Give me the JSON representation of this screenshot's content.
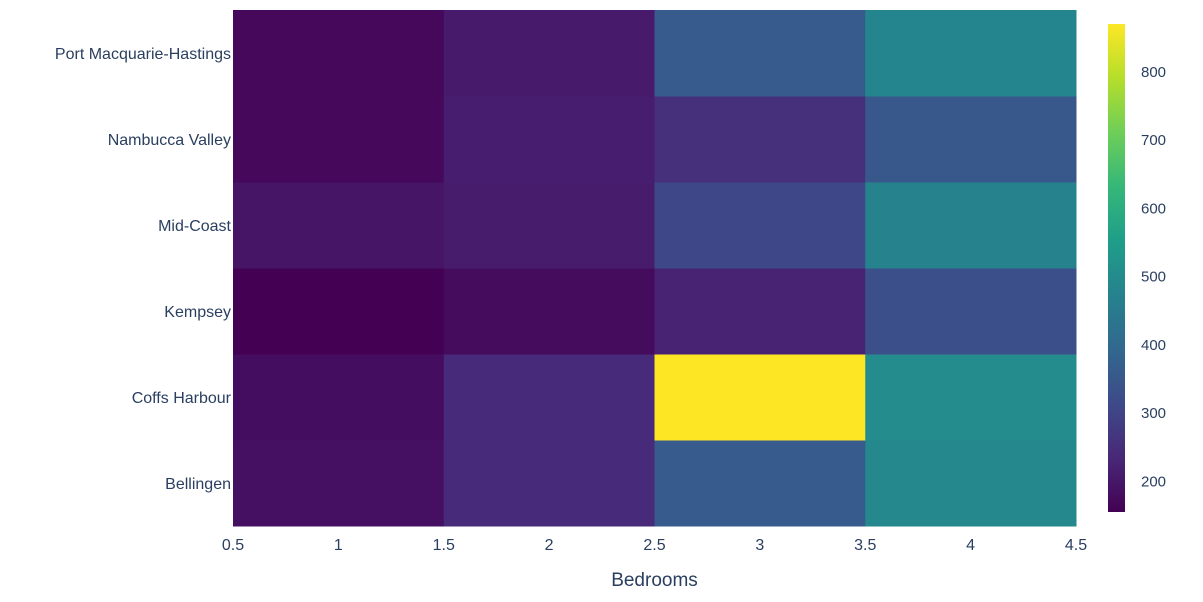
{
  "chart_data": {
    "type": "heatmap",
    "title": "",
    "xlabel": "Bedrooms",
    "ylabel": "",
    "x": [
      1,
      2,
      3,
      4
    ],
    "xlim": [
      0.5,
      4.5
    ],
    "x_ticks": [
      "0.5",
      "1",
      "1.5",
      "2",
      "2.5",
      "3",
      "3.5",
      "4",
      "4.5"
    ],
    "y": [
      "Bellingen",
      "Coffs Harbour",
      "Kempsey",
      "Mid-Coast",
      "Nambucca Valley",
      "Port Macquarie-Hastings"
    ],
    "z": [
      [
        185,
        240,
        360,
        490
      ],
      [
        180,
        240,
        870,
        500
      ],
      [
        155,
        175,
        225,
        330
      ],
      [
        195,
        210,
        310,
        475
      ],
      [
        170,
        215,
        250,
        350
      ],
      [
        170,
        205,
        360,
        480
      ]
    ],
    "colorscale": "Viridis",
    "zlim": [
      155,
      870
    ],
    "colorbar_ticks": [
      200,
      300,
      400,
      500,
      600,
      700,
      800
    ],
    "colorbar_tick_labels": [
      "200",
      "300",
      "400",
      "500",
      "600",
      "700",
      "800"
    ],
    "grid": false
  }
}
